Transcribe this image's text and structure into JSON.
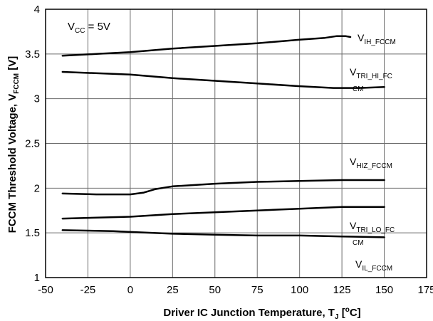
{
  "chart_data": {
    "type": "line",
    "xlabel": "Driver IC Junction Temperature, T",
    "xlabel_sub": "J",
    "xlabel_unit_open": " [",
    "xlabel_unit_sup": "o",
    "xlabel_unit_close": "C]",
    "ylabel": "FCCM Threshold Voltage, V",
    "ylabel_sub": "FCCM",
    "ylabel_unit": " [V]",
    "xlim": [
      -50,
      175
    ],
    "ylim": [
      1,
      4
    ],
    "xticks": [
      "-50",
      "-25",
      "0",
      "25",
      "50",
      "75",
      "100",
      "125",
      "150",
      "175"
    ],
    "yticks": [
      "1",
      "1.5",
      "2",
      "2.5",
      "3",
      "3.5",
      "4"
    ],
    "grid": true,
    "annotation": {
      "main": "V",
      "sub": "CC",
      "rest": " = 5V"
    },
    "series": [
      {
        "label_main": "V",
        "label_sub": "IH_FCCM",
        "label_sub2": "",
        "points": [
          [
            -40,
            3.48
          ],
          [
            -20,
            3.5
          ],
          [
            0,
            3.52
          ],
          [
            25,
            3.56
          ],
          [
            50,
            3.59
          ],
          [
            75,
            3.62
          ],
          [
            100,
            3.66
          ],
          [
            115,
            3.68
          ],
          [
            122,
            3.7
          ],
          [
            127,
            3.7
          ],
          [
            130,
            3.69
          ]
        ]
      },
      {
        "label_main": "V",
        "label_sub": "TRI_HI_FC",
        "label_sub2": "CM",
        "points": [
          [
            -40,
            3.3
          ],
          [
            0,
            3.27
          ],
          [
            25,
            3.23
          ],
          [
            50,
            3.2
          ],
          [
            75,
            3.17
          ],
          [
            100,
            3.14
          ],
          [
            120,
            3.12
          ],
          [
            135,
            3.12
          ],
          [
            150,
            3.13
          ]
        ]
      },
      {
        "label_main": "V",
        "label_sub": "HIZ_FCCM",
        "label_sub2": "",
        "points": [
          [
            -40,
            1.94
          ],
          [
            -20,
            1.93
          ],
          [
            0,
            1.93
          ],
          [
            8,
            1.95
          ],
          [
            15,
            1.99
          ],
          [
            25,
            2.02
          ],
          [
            50,
            2.05
          ],
          [
            75,
            2.07
          ],
          [
            100,
            2.08
          ],
          [
            125,
            2.09
          ],
          [
            150,
            2.09
          ]
        ]
      },
      {
        "label_main": "V",
        "label_sub": "TRI_LO_FC",
        "label_sub2": "CM",
        "points": [
          [
            -40,
            1.66
          ],
          [
            0,
            1.68
          ],
          [
            25,
            1.71
          ],
          [
            50,
            1.73
          ],
          [
            75,
            1.75
          ],
          [
            100,
            1.77
          ],
          [
            125,
            1.79
          ],
          [
            150,
            1.79
          ]
        ]
      },
      {
        "label_main": "V",
        "label_sub": "IL_FCCM",
        "label_sub2": "",
        "points": [
          [
            -40,
            1.53
          ],
          [
            -10,
            1.52
          ],
          [
            0,
            1.51
          ],
          [
            25,
            1.49
          ],
          [
            50,
            1.48
          ],
          [
            75,
            1.47
          ],
          [
            100,
            1.47
          ],
          [
            125,
            1.46
          ],
          [
            150,
            1.45
          ]
        ]
      }
    ]
  }
}
